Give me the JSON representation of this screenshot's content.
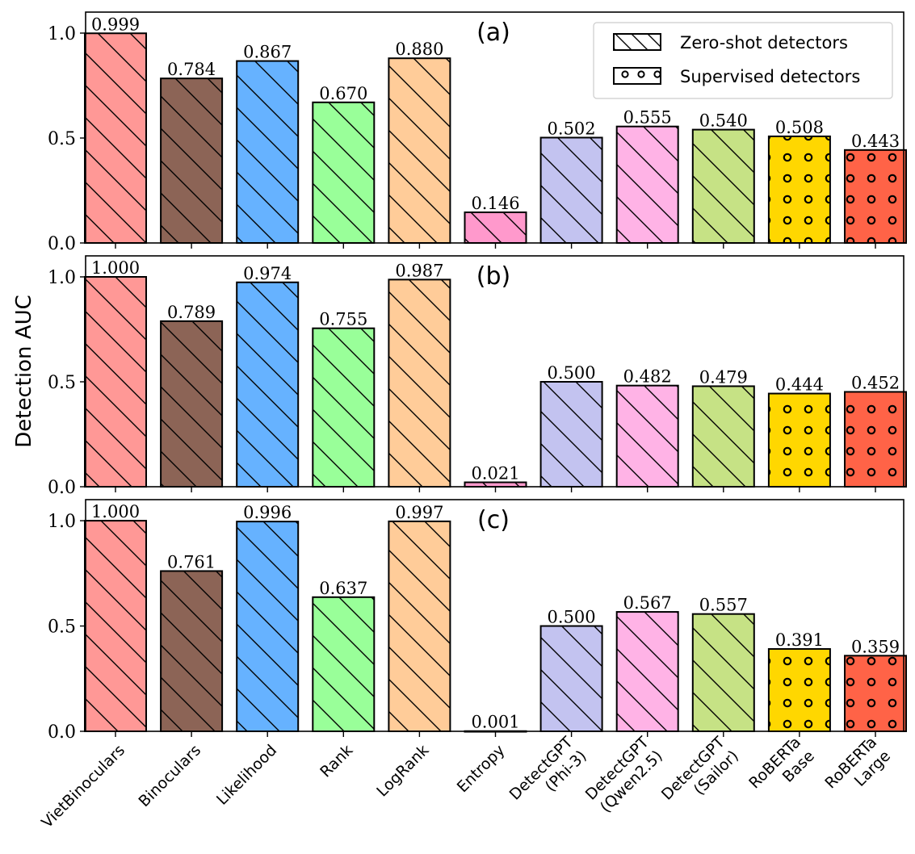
{
  "chart_data": {
    "type": "bar",
    "ylabel": "Detection AUC",
    "ylim": [
      0,
      1.1
    ],
    "yticks": [
      "0.0",
      "0.5",
      "1.0"
    ],
    "categories": [
      [
        "VietBinoculars"
      ],
      [
        "Binoculars"
      ],
      [
        "Likelihood"
      ],
      [
        "Rank"
      ],
      [
        "LogRank"
      ],
      [
        "Entropy"
      ],
      [
        "DetectGPT",
        "(Phi-3)"
      ],
      [
        "DetectGPT",
        "(Qwen2.5)"
      ],
      [
        "DetectGPT",
        "(Sailor)"
      ],
      [
        "RoBERTa",
        "Base"
      ],
      [
        "RoBERTa",
        "Large"
      ]
    ],
    "colors": [
      "#FF9896",
      "#8C6456",
      "#66B2FF",
      "#99FF99",
      "#FFCC99",
      "#FF99CC",
      "#C3C3F0",
      "#FFB3E6",
      "#C6E285",
      "#FFD700",
      "#FF6347"
    ],
    "hatches": [
      "zero",
      "zero",
      "zero",
      "zero",
      "zero",
      "zero",
      "zero",
      "zero",
      "zero",
      "supervised",
      "supervised"
    ],
    "legend": {
      "position": "top-right",
      "entries": [
        {
          "label": "Zero-shot detectors",
          "hatch": "zero"
        },
        {
          "label": "Supervised detectors",
          "hatch": "supervised"
        }
      ]
    },
    "panels": [
      {
        "tag": "(a)",
        "values": [
          0.999,
          0.784,
          0.867,
          0.67,
          0.88,
          0.146,
          0.502,
          0.555,
          0.54,
          0.508,
          0.443
        ],
        "labels": [
          "0.999",
          "0.784",
          "0.867",
          "0.670",
          "0.880",
          "0.146",
          "0.502",
          "0.555",
          "0.540",
          "0.508",
          "0.443"
        ]
      },
      {
        "tag": "(b)",
        "values": [
          1.0,
          0.789,
          0.974,
          0.755,
          0.987,
          0.021,
          0.5,
          0.482,
          0.479,
          0.444,
          0.452
        ],
        "labels": [
          "1.000",
          "0.789",
          "0.974",
          "0.755",
          "0.987",
          "0.021",
          "0.500",
          "0.482",
          "0.479",
          "0.444",
          "0.452"
        ]
      },
      {
        "tag": "(c)",
        "values": [
          1.0,
          0.761,
          0.996,
          0.637,
          0.997,
          0.001,
          0.5,
          0.567,
          0.557,
          0.391,
          0.359
        ],
        "labels": [
          "1.000",
          "0.761",
          "0.996",
          "0.637",
          "0.997",
          "0.001",
          "0.500",
          "0.567",
          "0.557",
          "0.391",
          "0.359"
        ]
      }
    ]
  }
}
